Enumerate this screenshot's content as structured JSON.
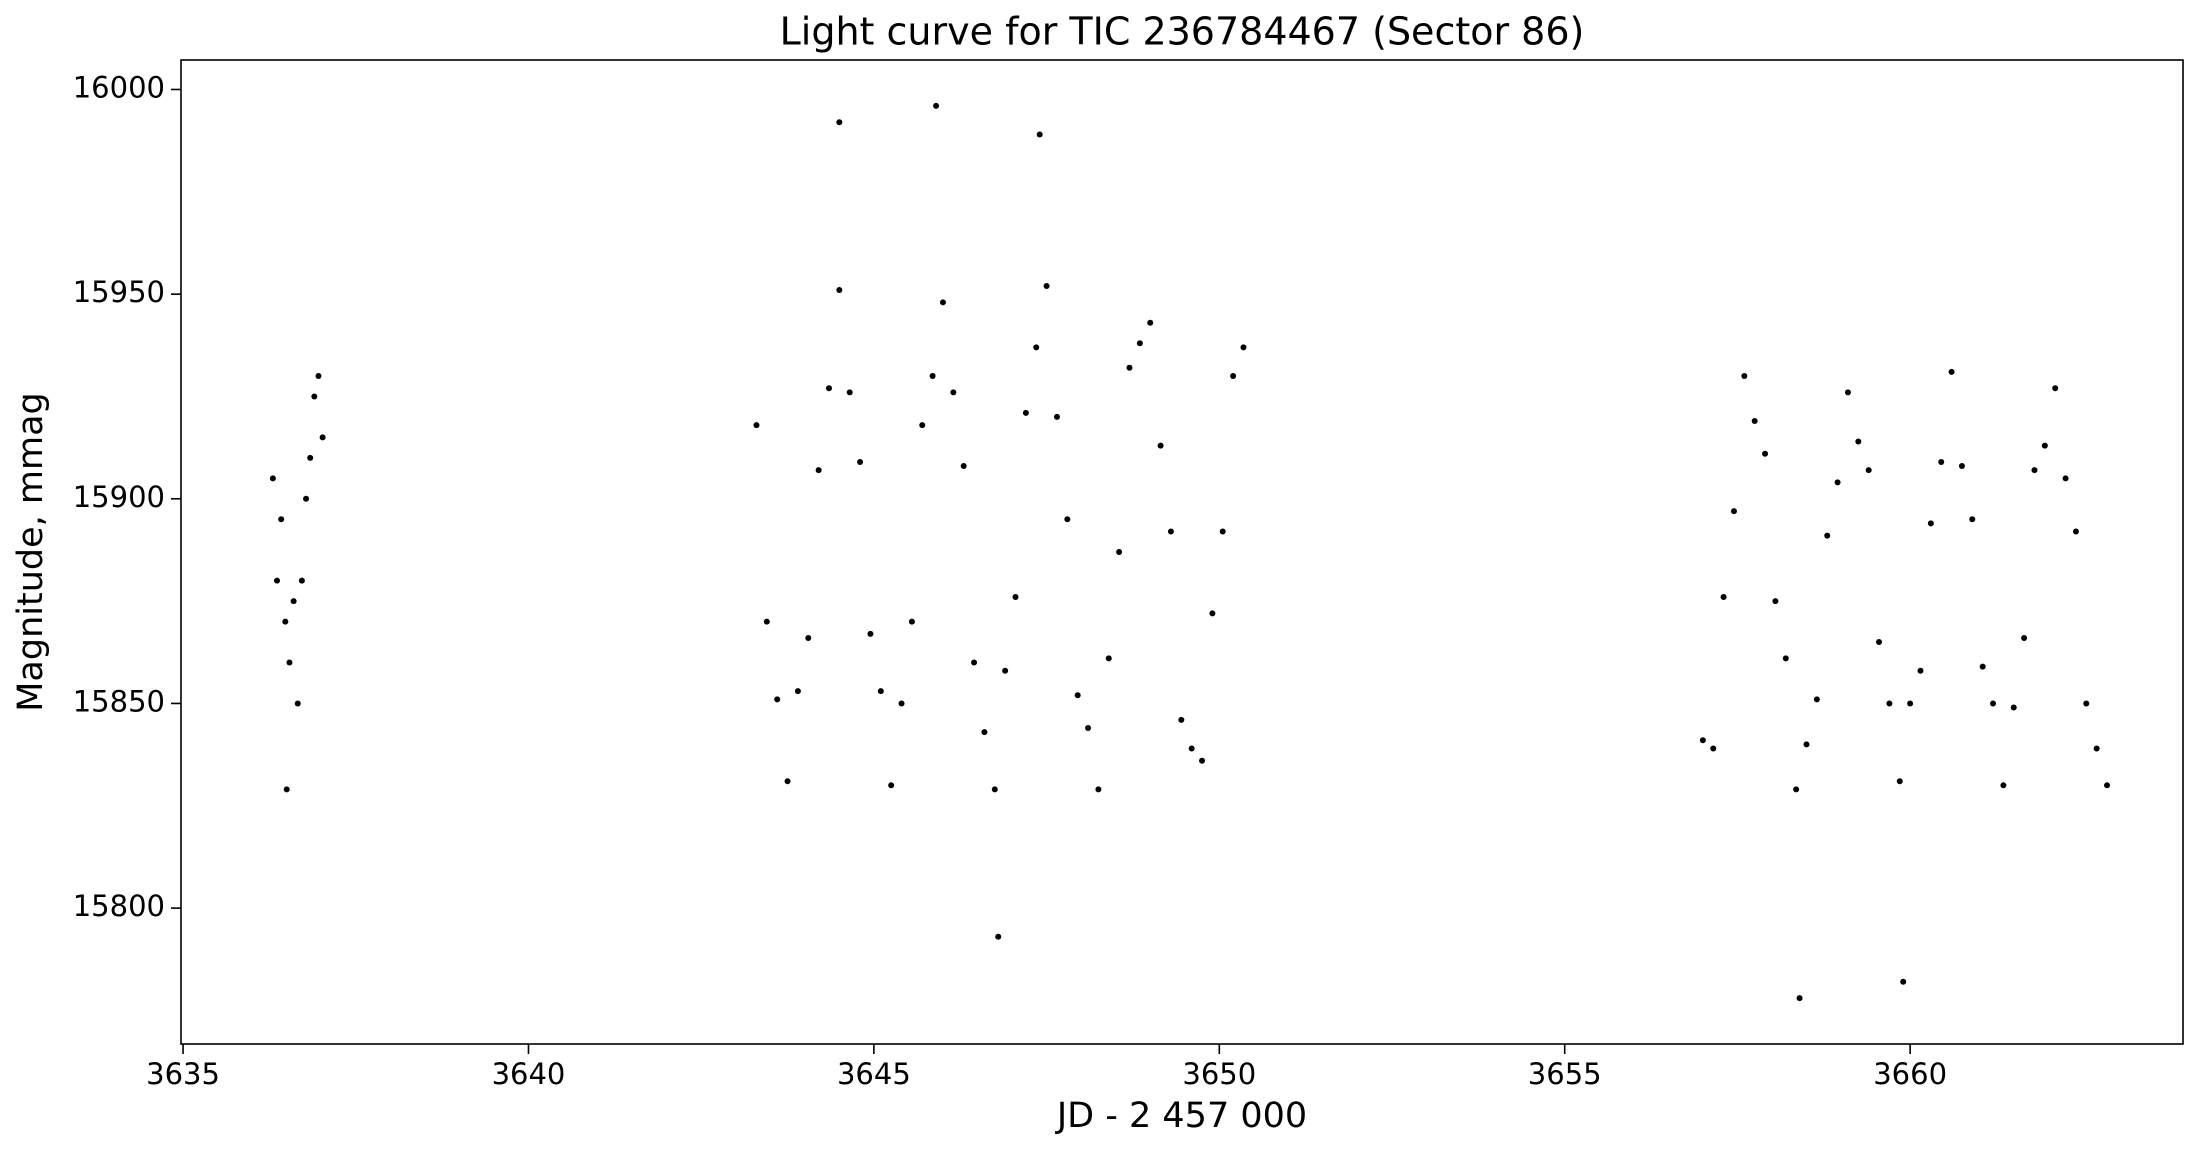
{
  "chart_data": {
    "type": "scatter",
    "title": "Light curve for TIC 236784467 (Sector 86)",
    "x_label": "JD - 2 457 000",
    "y_label": "Magnitude, mmag",
    "color": "#000000",
    "grid": false,
    "xlim": [
      3634.97,
      3663.95
    ],
    "ylim": [
      15766.8,
      16007.2
    ],
    "xticks": [
      3635,
      3640,
      3645,
      3650,
      3655,
      3660
    ],
    "yticks": [
      15800,
      15850,
      15900,
      15950,
      16000
    ],
    "x": [
      3636.3,
      3636.36,
      3636.42,
      3636.48,
      3636.54,
      3636.6,
      3636.66,
      3636.72,
      3636.78,
      3636.84,
      3636.9,
      3636.96,
      3637.02,
      3643.3,
      3643.45,
      3643.6,
      3643.75,
      3643.9,
      3644.05,
      3644.2,
      3644.35,
      3644.5,
      3644.65,
      3644.8,
      3644.95,
      3645.1,
      3645.25,
      3645.4,
      3645.55,
      3645.7,
      3645.85,
      3646.0,
      3646.15,
      3646.3,
      3646.45,
      3646.6,
      3646.75,
      3646.9,
      3647.05,
      3647.2,
      3647.35,
      3647.5,
      3647.65,
      3647.8,
      3647.95,
      3648.1,
      3648.25,
      3648.4,
      3648.55,
      3648.7,
      3648.85,
      3649.0,
      3649.15,
      3649.3,
      3649.45,
      3649.6,
      3649.75,
      3649.9,
      3650.05,
      3650.2,
      3650.35,
      3657.0,
      3657.15,
      3657.3,
      3657.45,
      3657.6,
      3657.75,
      3657.9,
      3658.05,
      3658.2,
      3658.35,
      3658.5,
      3658.65,
      3658.8,
      3658.95,
      3659.1,
      3659.25,
      3659.4,
      3659.55,
      3659.7,
      3659.85,
      3660.0,
      3660.15,
      3660.3,
      3660.45,
      3660.6,
      3660.75,
      3660.9,
      3661.05,
      3661.2,
      3661.35,
      3661.5,
      3661.65,
      3661.8,
      3661.95,
      3662.1,
      3662.25,
      3662.4,
      3662.55,
      3662.7,
      3662.85,
      3644.5,
      3645.9,
      3647.4,
      3658.4,
      3659.9,
      3646.8,
      3636.5
    ],
    "values": [
      15905,
      15880,
      15895,
      15870,
      15860,
      15875,
      15850,
      15880,
      15900,
      15910,
      15925,
      15930,
      15915,
      15918,
      15870,
      15851,
      15831,
      15853,
      15866,
      15907,
      15927,
      15951,
      15926,
      15909,
      15867,
      15853,
      15830,
      15850,
      15870,
      15918,
      15930,
      15948,
      15926,
      15908,
      15860,
      15843,
      15829,
      15858,
      15876,
      15921,
      15937,
      15952,
      15920,
      15895,
      15852,
      15844,
      15829,
      15861,
      15887,
      15932,
      15938,
      15943,
      15913,
      15892,
      15846,
      15839,
      15836,
      15872,
      15892,
      15930,
      15937,
      15841,
      15839,
      15876,
      15897,
      15930,
      15919,
      15911,
      15875,
      15861,
      15829,
      15840,
      15851,
      15891,
      15904,
      15926,
      15914,
      15907,
      15865,
      15850,
      15831,
      15850,
      15858,
      15894,
      15909,
      15931,
      15908,
      15895,
      15859,
      15850,
      15830,
      15849,
      15866,
      15907,
      15913,
      15927,
      15905,
      15892,
      15850,
      15839,
      15830,
      15992,
      15996,
      15989,
      15778,
      15782,
      15793,
      15829
    ]
  }
}
